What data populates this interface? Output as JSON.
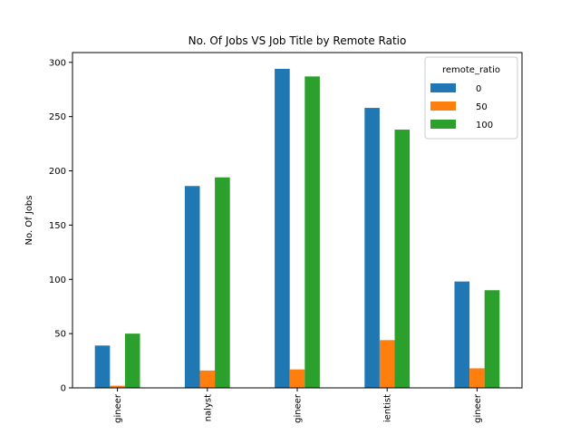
{
  "chart_data": {
    "type": "bar",
    "title": "No. Of Jobs VS Job Title by Remote Ratio",
    "ylabel": "No. Of Jobs",
    "xlabel": "",
    "categories": [
      "gineer",
      "nalyst",
      "gineer",
      "ientist",
      "gineer"
    ],
    "series": [
      {
        "name": "0",
        "color": "#1f77b4",
        "values": [
          39,
          186,
          294,
          258,
          98
        ]
      },
      {
        "name": "50",
        "color": "#ff7f0e",
        "values": [
          2,
          16,
          17,
          44,
          18
        ]
      },
      {
        "name": "100",
        "color": "#2ca02c",
        "values": [
          50,
          194,
          287,
          238,
          90
        ]
      }
    ],
    "ylim": [
      0,
      309
    ],
    "yticks": [
      0,
      50,
      100,
      150,
      200,
      250,
      300
    ],
    "legend": {
      "title": "remote_ratio",
      "placement": "top-right"
    },
    "grid": false
  }
}
